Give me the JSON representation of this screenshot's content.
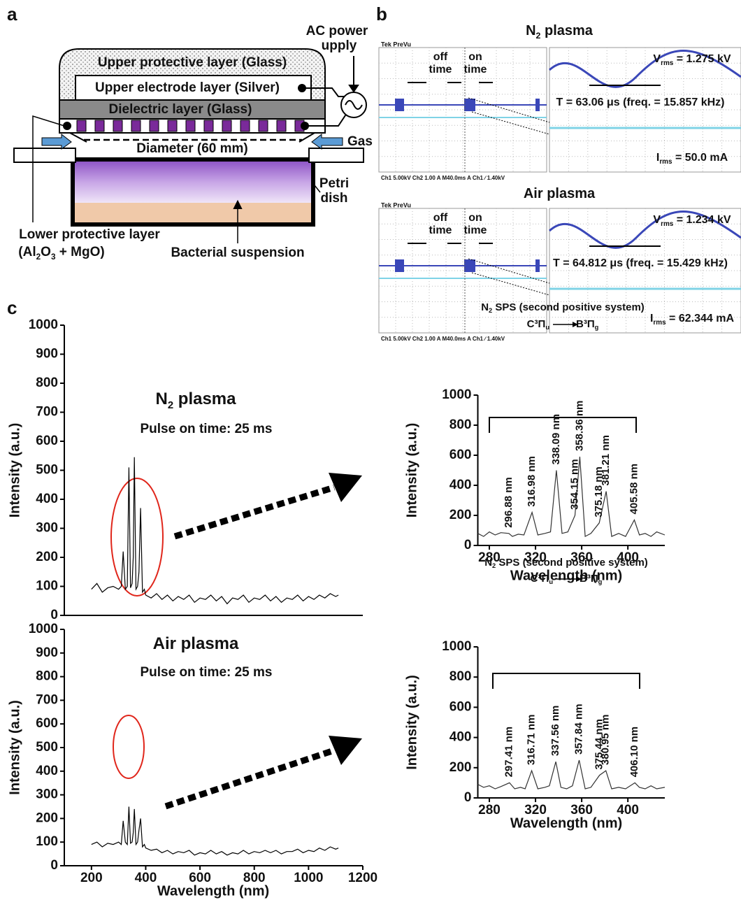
{
  "panel_labels": [
    "a",
    "b",
    "c"
  ],
  "diagram": {
    "upper_protective": "Upper protective layer (Glass)",
    "upper_electrode": "Upper electrode layer (Silver)",
    "dielectric": "Dielectric layer (Glass)",
    "diameter": "Diameter (60 mm)",
    "gas": "Gas",
    "ac_power": [
      "AC power",
      "upply"
    ],
    "petri": [
      "Petri",
      "dish"
    ],
    "lower_protective": "Lower protective layer",
    "lower_formula": [
      "(Al",
      "2",
      "O",
      "3",
      " + MgO)"
    ],
    "bacterial": "Bacterial suspension"
  },
  "oscilloscope": [
    {
      "title": [
        "N",
        "2",
        " plasma"
      ],
      "off_time": [
        "off",
        "time"
      ],
      "on_time": [
        "on",
        "time"
      ],
      "vrms": [
        "V",
        "rms",
        " = 1.275 kV"
      ],
      "period": "T = 63.06 μs (freq. = 15.857 kHz)",
      "irms": [
        "I",
        "rms",
        " = 50.0 mA"
      ],
      "header": "Tek PreVu",
      "footer": "Ch1   5.00kV   Ch2   1.00 A   M40.0ms  A  Ch1  ∕  1.40kV"
    },
    {
      "title": [
        "Air plasma"
      ],
      "off_time": [
        "off",
        "time"
      ],
      "on_time": [
        "on",
        "time"
      ],
      "vrms": [
        "V",
        "rms",
        " = 1.234 kV"
      ],
      "period": "T = 64.812 μs (freq. = 15.429 kHz)",
      "irms": [
        "I",
        "rms",
        " = 62.344 mA"
      ],
      "header": "Tek PreVu",
      "footer": "Ch1   5.00kV   Ch2   1.00 A   M40.0ms  A  Ch1  ∕  1.40kV"
    }
  ],
  "chart_data": [
    {
      "type": "line",
      "title": [
        "N",
        "2",
        " plasma"
      ],
      "subtitle": "Pulse on time: 25 ms",
      "y_label": "Intensity (a.u.)",
      "color": "#000000",
      "xlim": [
        100,
        1200
      ],
      "ylim": [
        0,
        1000
      ],
      "yticks": [
        0,
        100,
        200,
        300,
        400,
        500,
        600,
        700,
        800,
        900,
        1000
      ],
      "x": [
        200,
        220,
        240,
        260,
        280,
        300,
        310,
        317,
        325,
        332,
        338,
        344,
        350,
        354,
        358,
        364,
        370,
        375,
        381,
        388,
        395,
        400,
        420,
        440,
        460,
        480,
        500,
        520,
        540,
        560,
        580,
        600,
        620,
        640,
        660,
        680,
        700,
        720,
        740,
        760,
        780,
        800,
        820,
        840,
        860,
        880,
        900,
        920,
        940,
        960,
        980,
        1000,
        1020,
        1040,
        1060,
        1080,
        1100,
        1110
      ],
      "values": [
        90,
        110,
        80,
        95,
        100,
        90,
        100,
        220,
        90,
        100,
        510,
        95,
        110,
        200,
        545,
        90,
        100,
        150,
        370,
        80,
        90,
        70,
        60,
        75,
        55,
        70,
        50,
        65,
        55,
        70,
        45,
        60,
        55,
        70,
        50,
        65,
        40,
        60,
        55,
        70,
        45,
        60,
        55,
        70,
        50,
        65,
        45,
        60,
        55,
        70,
        50,
        65,
        55,
        70,
        60,
        75,
        65,
        70
      ]
    },
    {
      "type": "line",
      "annotation_title": [
        "N",
        "2",
        " SPS (second positive system)"
      ],
      "transition": [
        "C³Π",
        "u",
        "B³Π",
        "g"
      ],
      "x_label": "Wavelength (nm)",
      "y_label": "Intensity (a.u.)",
      "color": "#333333",
      "xlim": [
        270,
        432
      ],
      "xticks": [
        280,
        320,
        360,
        400
      ],
      "ylim": [
        0,
        1000
      ],
      "yticks": [
        0,
        200,
        400,
        600,
        800,
        1000
      ],
      "x": [
        270,
        275,
        280,
        285,
        290,
        296.88,
        300,
        305,
        310,
        316.98,
        322,
        328,
        333,
        338.09,
        343,
        348,
        354.15,
        358.36,
        363,
        368,
        375.18,
        381.21,
        386,
        392,
        398,
        405.58,
        410,
        415,
        420,
        425,
        432
      ],
      "values": [
        80,
        60,
        90,
        70,
        85,
        80,
        60,
        75,
        70,
        220,
        70,
        80,
        90,
        500,
        80,
        90,
        200,
        590,
        60,
        80,
        150,
        360,
        60,
        80,
        60,
        170,
        70,
        80,
        60,
        90,
        70
      ],
      "peaks": [
        {
          "x": 296.88,
          "label": "296.88 nm"
        },
        {
          "x": 316.98,
          "label": "316.98 nm"
        },
        {
          "x": 338.09,
          "label": "338.09 nm"
        },
        {
          "x": 354.15,
          "label": "354.15 nm"
        },
        {
          "x": 358.36,
          "label": "358.36 nm"
        },
        {
          "x": 375.18,
          "label": "375.18 nm"
        },
        {
          "x": 381.21,
          "label": "381.21 nm"
        },
        {
          "x": 405.58,
          "label": "405.58 nm"
        }
      ]
    },
    {
      "type": "line",
      "title": [
        "Air plasma"
      ],
      "subtitle": "Pulse on time: 25 ms",
      "x_label": "Wavelength (nm)",
      "y_label": "Intensity (a.u.)",
      "color": "#000000",
      "xlim": [
        100,
        1200
      ],
      "xticks": [
        200,
        400,
        600,
        800,
        1000,
        1200
      ],
      "ylim": [
        0,
        1000
      ],
      "yticks": [
        0,
        100,
        200,
        300,
        400,
        500,
        600,
        700,
        800,
        900,
        1000
      ],
      "x": [
        200,
        220,
        240,
        260,
        280,
        300,
        310,
        317,
        325,
        332,
        338,
        344,
        350,
        354,
        358,
        364,
        370,
        375,
        381,
        388,
        395,
        400,
        420,
        440,
        460,
        480,
        500,
        520,
        540,
        560,
        580,
        600,
        620,
        640,
        660,
        680,
        700,
        720,
        740,
        760,
        780,
        800,
        820,
        840,
        860,
        880,
        900,
        920,
        940,
        960,
        980,
        1000,
        1020,
        1040,
        1060,
        1080,
        1100,
        1110
      ],
      "values": [
        90,
        100,
        80,
        95,
        90,
        100,
        90,
        190,
        100,
        90,
        250,
        95,
        100,
        140,
        240,
        90,
        100,
        150,
        200,
        80,
        90,
        75,
        65,
        70,
        55,
        65,
        50,
        60,
        55,
        65,
        45,
        55,
        50,
        65,
        50,
        60,
        45,
        55,
        50,
        65,
        50,
        60,
        55,
        65,
        55,
        65,
        50,
        60,
        60,
        70,
        55,
        65,
        60,
        75,
        65,
        80,
        70,
        75
      ]
    },
    {
      "type": "line",
      "annotation_title": [
        "N",
        "2",
        " SPS (second positive system)"
      ],
      "transition": [
        "C³Π",
        "u",
        "B³Π",
        "g"
      ],
      "x_label": "Wavelength (nm)",
      "y_label": "Intensity (a.u.)",
      "color": "#333333",
      "xlim": [
        270,
        432
      ],
      "xticks": [
        280,
        320,
        360,
        400
      ],
      "ylim": [
        0,
        1000
      ],
      "yticks": [
        0,
        200,
        400,
        600,
        800,
        1000
      ],
      "x": [
        270,
        275,
        280,
        285,
        290,
        297.41,
        302,
        307,
        311,
        316.71,
        322,
        328,
        332,
        337.56,
        342,
        347,
        352,
        357.84,
        363,
        368,
        375.44,
        380.95,
        386,
        392,
        398,
        406.1,
        410,
        415,
        420,
        425,
        432
      ],
      "values": [
        90,
        70,
        80,
        60,
        75,
        100,
        60,
        70,
        60,
        180,
        60,
        70,
        80,
        240,
        70,
        60,
        80,
        250,
        60,
        70,
        150,
        180,
        60,
        70,
        60,
        100,
        70,
        60,
        80,
        60,
        70
      ],
      "peaks": [
        {
          "x": 297.41,
          "label": "297.41 nm"
        },
        {
          "x": 316.71,
          "label": "316.71 nm"
        },
        {
          "x": 337.56,
          "label": "337.56 nm"
        },
        {
          "x": 357.84,
          "label": "357.84 nm"
        },
        {
          "x": 375.44,
          "label": "375.44 nm"
        },
        {
          "x": 380.95,
          "label": "380.95 nm"
        },
        {
          "x": 406.1,
          "label": "406.10 nm"
        }
      ]
    }
  ]
}
